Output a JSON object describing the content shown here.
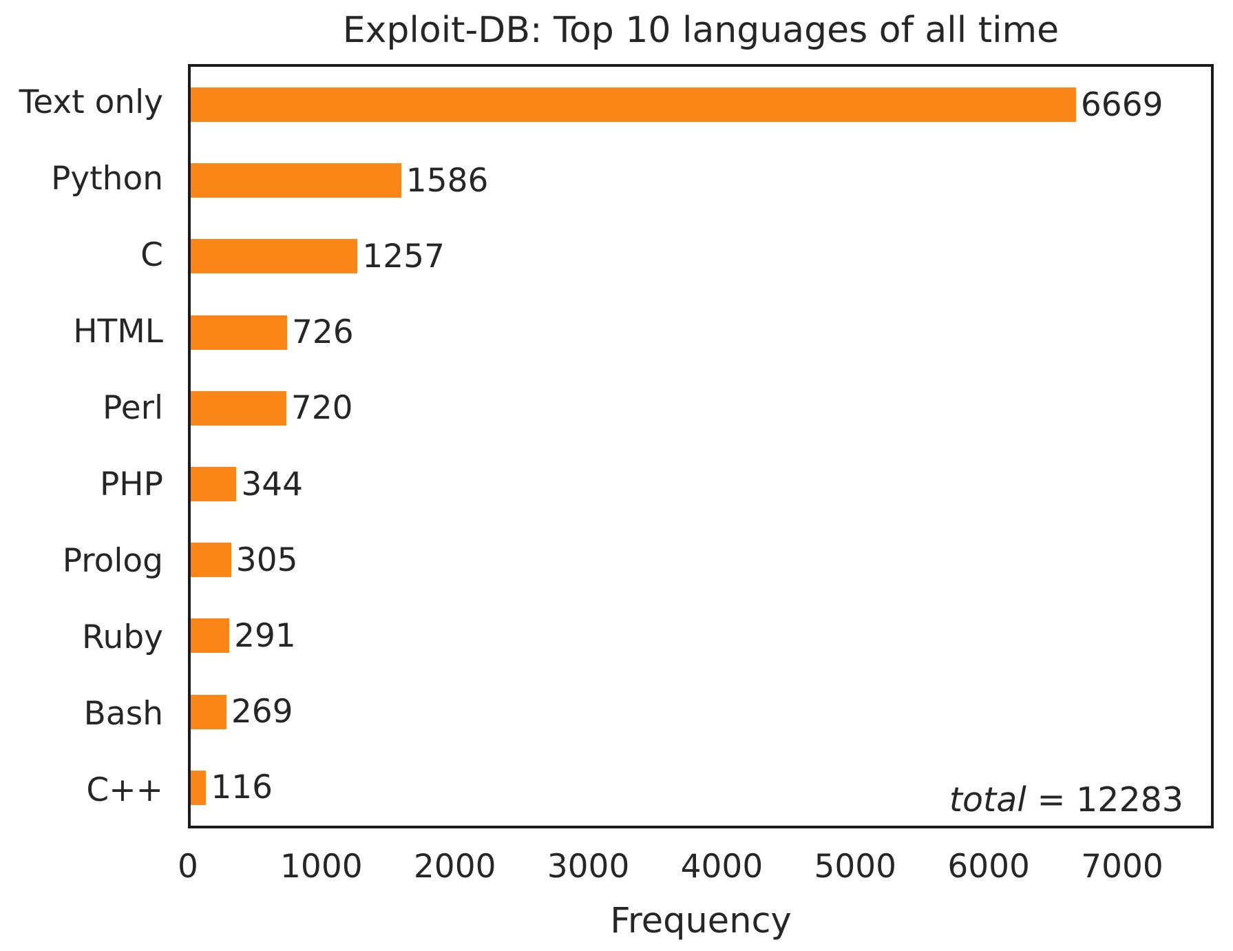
{
  "chart_data": {
    "type": "bar",
    "orientation": "horizontal",
    "title": "Exploit-DB: Top 10 languages of all time",
    "categories": [
      "Text only",
      "Python",
      "C",
      "HTML",
      "Perl",
      "PHP",
      "Prolog",
      "Ruby",
      "Bash",
      "C++"
    ],
    "values": [
      6669,
      1586,
      1257,
      726,
      720,
      344,
      305,
      291,
      269,
      116
    ],
    "xlabel": "Frequency",
    "ylabel": "",
    "xlim": [
      0,
      7686
    ],
    "xticks": [
      0,
      1000,
      2000,
      3000,
      4000,
      5000,
      6000,
      7000
    ],
    "grid": false,
    "legend": "none",
    "value_labels_shown": true,
    "annotation": {
      "label": "total",
      "separator": " = ",
      "value": "12283"
    },
    "bar_color": "#fb8618"
  },
  "colors": {
    "bar": "#fb8618",
    "text": "#262626",
    "spine": "#1a1a1a",
    "background": "#ffffff"
  }
}
